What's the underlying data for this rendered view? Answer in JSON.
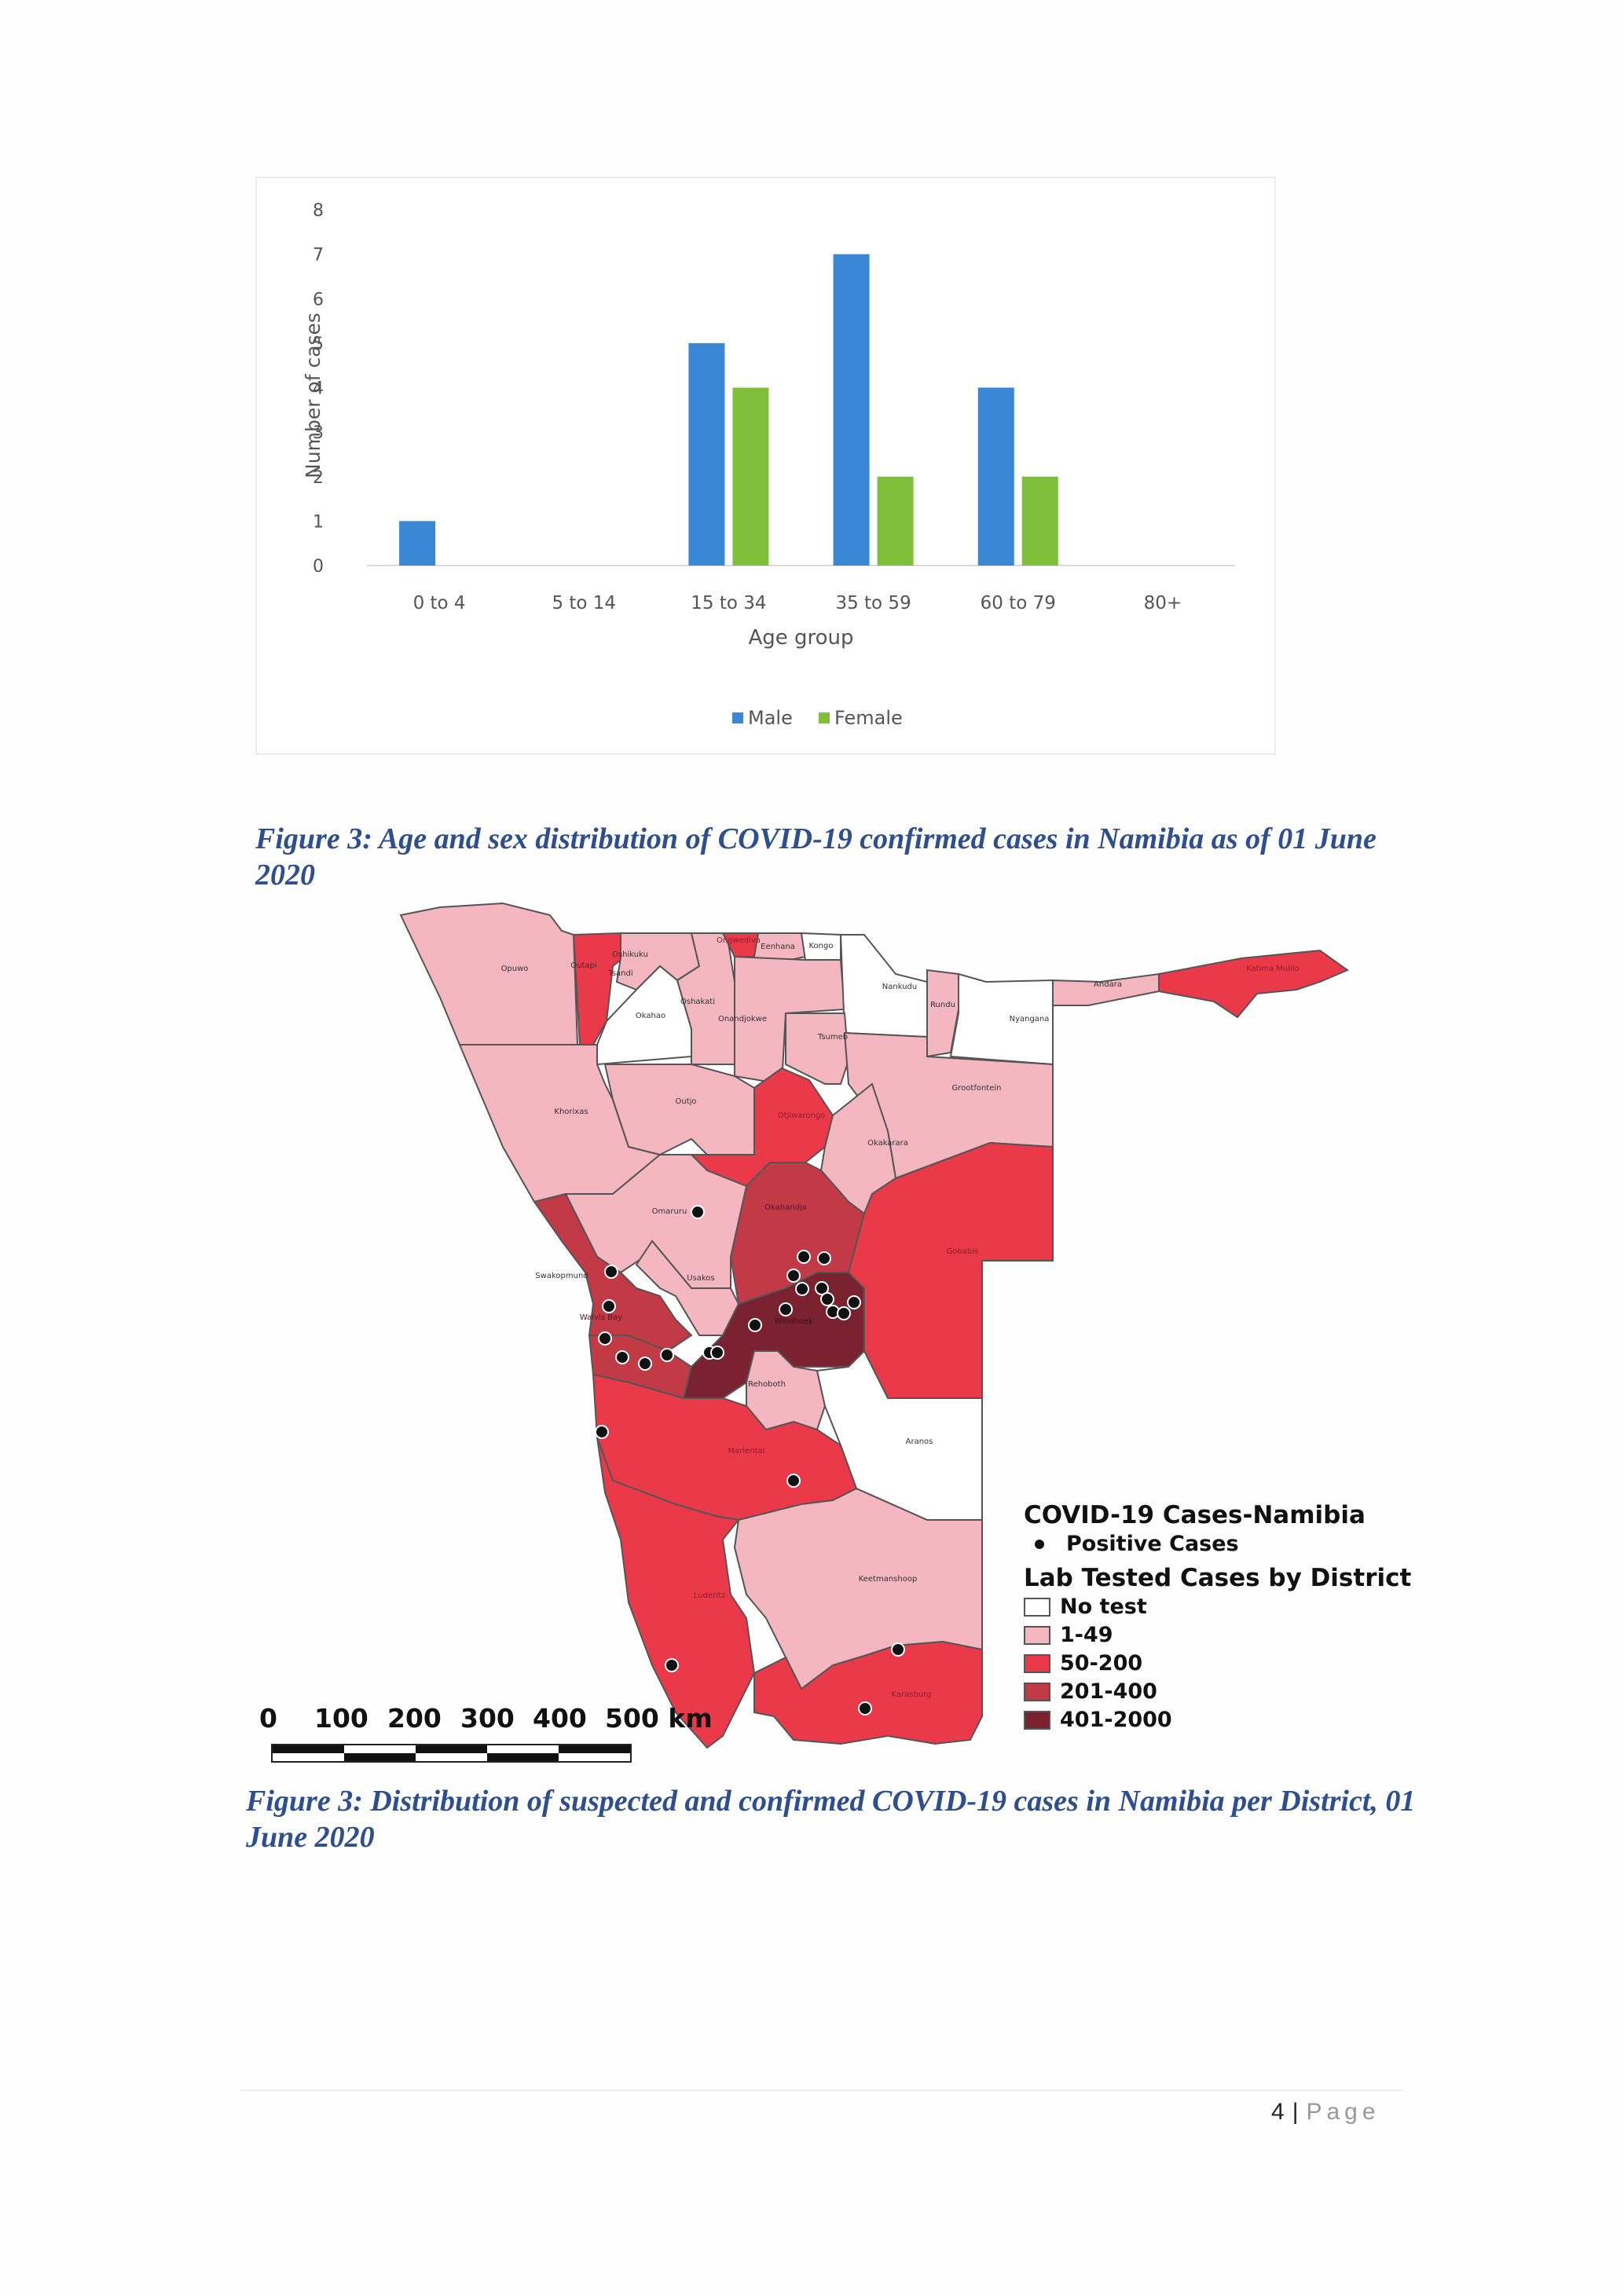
{
  "figure1": {
    "caption": "Figure 3: Age and sex distribution of COVID-19 confirmed cases in Namibia as of 01 June 2020"
  },
  "chart_data": {
    "type": "bar",
    "title": "",
    "xlabel": "Age group",
    "ylabel": "Number of cases",
    "ylim": [
      0,
      8
    ],
    "yticks": [
      0,
      1,
      2,
      3,
      4,
      5,
      6,
      7,
      8
    ],
    "grid": false,
    "legend_position": "bottom",
    "categories": [
      "0 to 4",
      "5 to 14",
      "15 to 34",
      "35 to 59",
      "60 to 79",
      "80+"
    ],
    "series": [
      {
        "name": "Male",
        "color": "#3a87d6",
        "values": [
          1,
          0,
          5,
          7,
          4,
          0
        ]
      },
      {
        "name": "Female",
        "color": "#7fbf3a",
        "values": [
          0,
          0,
          4,
          2,
          2,
          0
        ]
      }
    ]
  },
  "map": {
    "caption": "Figure 3: Distribution of suspected and confirmed COVID-19 cases in Namibia per District, 01 June 2020",
    "legend": {
      "title": "COVID-19 Cases-Namibia",
      "points_label": "Positive Cases",
      "classes_title": "Lab Tested Cases by District",
      "classes": [
        {
          "label": "No test",
          "color": "#ffffff"
        },
        {
          "label": "1-49",
          "color": "#f4b6bf"
        },
        {
          "label": "50-200",
          "color": "#ea3a4a"
        },
        {
          "label": "201-400",
          "color": "#c23a46"
        },
        {
          "label": "401-2000",
          "color": "#7a2230"
        }
      ]
    },
    "scale_labels": [
      "0",
      "100",
      "200",
      "300",
      "400",
      "500 km"
    ],
    "district_labels": [
      "Opuwo",
      "Outapi",
      "Oshikuku",
      "Tsandi",
      "Okahao",
      "Oshakati",
      "Ongwediva",
      "Eenhana",
      "Kongo",
      "Nankudu",
      "Rundu",
      "Nyangana",
      "Andara",
      "Katima Mulilo",
      "Onandjokwe",
      "Tsumeb",
      "Grootfontein",
      "Khorixas",
      "Outjo",
      "Otjiwarongo",
      "Okakarara",
      "Omaruru",
      "Okahandja",
      "Gobabis",
      "Swakopmund",
      "Usakos",
      "Walvis Bay",
      "Windhoek",
      "Rehoboth",
      "Aranos",
      "Mariental",
      "Keetmanshoop",
      "Luderitz",
      "Karasburg"
    ]
  },
  "footer": {
    "page_number": "4",
    "separator": "|",
    "page_word": "Page"
  }
}
